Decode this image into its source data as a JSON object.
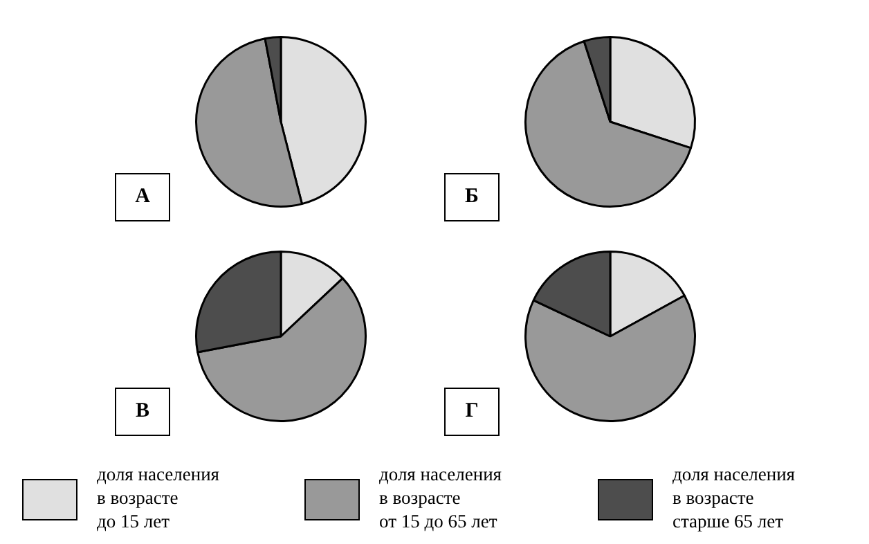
{
  "chart_data": [
    {
      "type": "pie",
      "title": "А",
      "categories": [
        "доля населения\nв возрасте\nдо 15 лет",
        "доля населения\nв возрасте\nот 15 до 65 лет",
        "доля населения\nв возрасте\nстарше 65 лет"
      ],
      "values": [
        46,
        51,
        3
      ],
      "colors": [
        "#e0e0e0",
        "#999999",
        "#4d4d4d"
      ],
      "legend": "bottom"
    },
    {
      "type": "pie",
      "title": "Б",
      "categories": [
        null,
        null,
        null
      ],
      "values": [
        30,
        65,
        5
      ],
      "colors": [
        "#e0e0e0",
        "#999999",
        "#4d4d4d"
      ]
    },
    {
      "type": "pie",
      "title": "В",
      "categories": [
        null,
        null,
        null
      ],
      "values": [
        13,
        59,
        28
      ],
      "colors": [
        "#e0e0e0",
        "#999999",
        "#4d4d4d"
      ]
    },
    {
      "type": "pie",
      "title": "Г",
      "categories": [
        null,
        null,
        null
      ],
      "values": [
        17,
        65,
        18
      ],
      "colors": [
        "#e0e0e0",
        "#999999",
        "#4d4d4d"
      ]
    }
  ]
}
